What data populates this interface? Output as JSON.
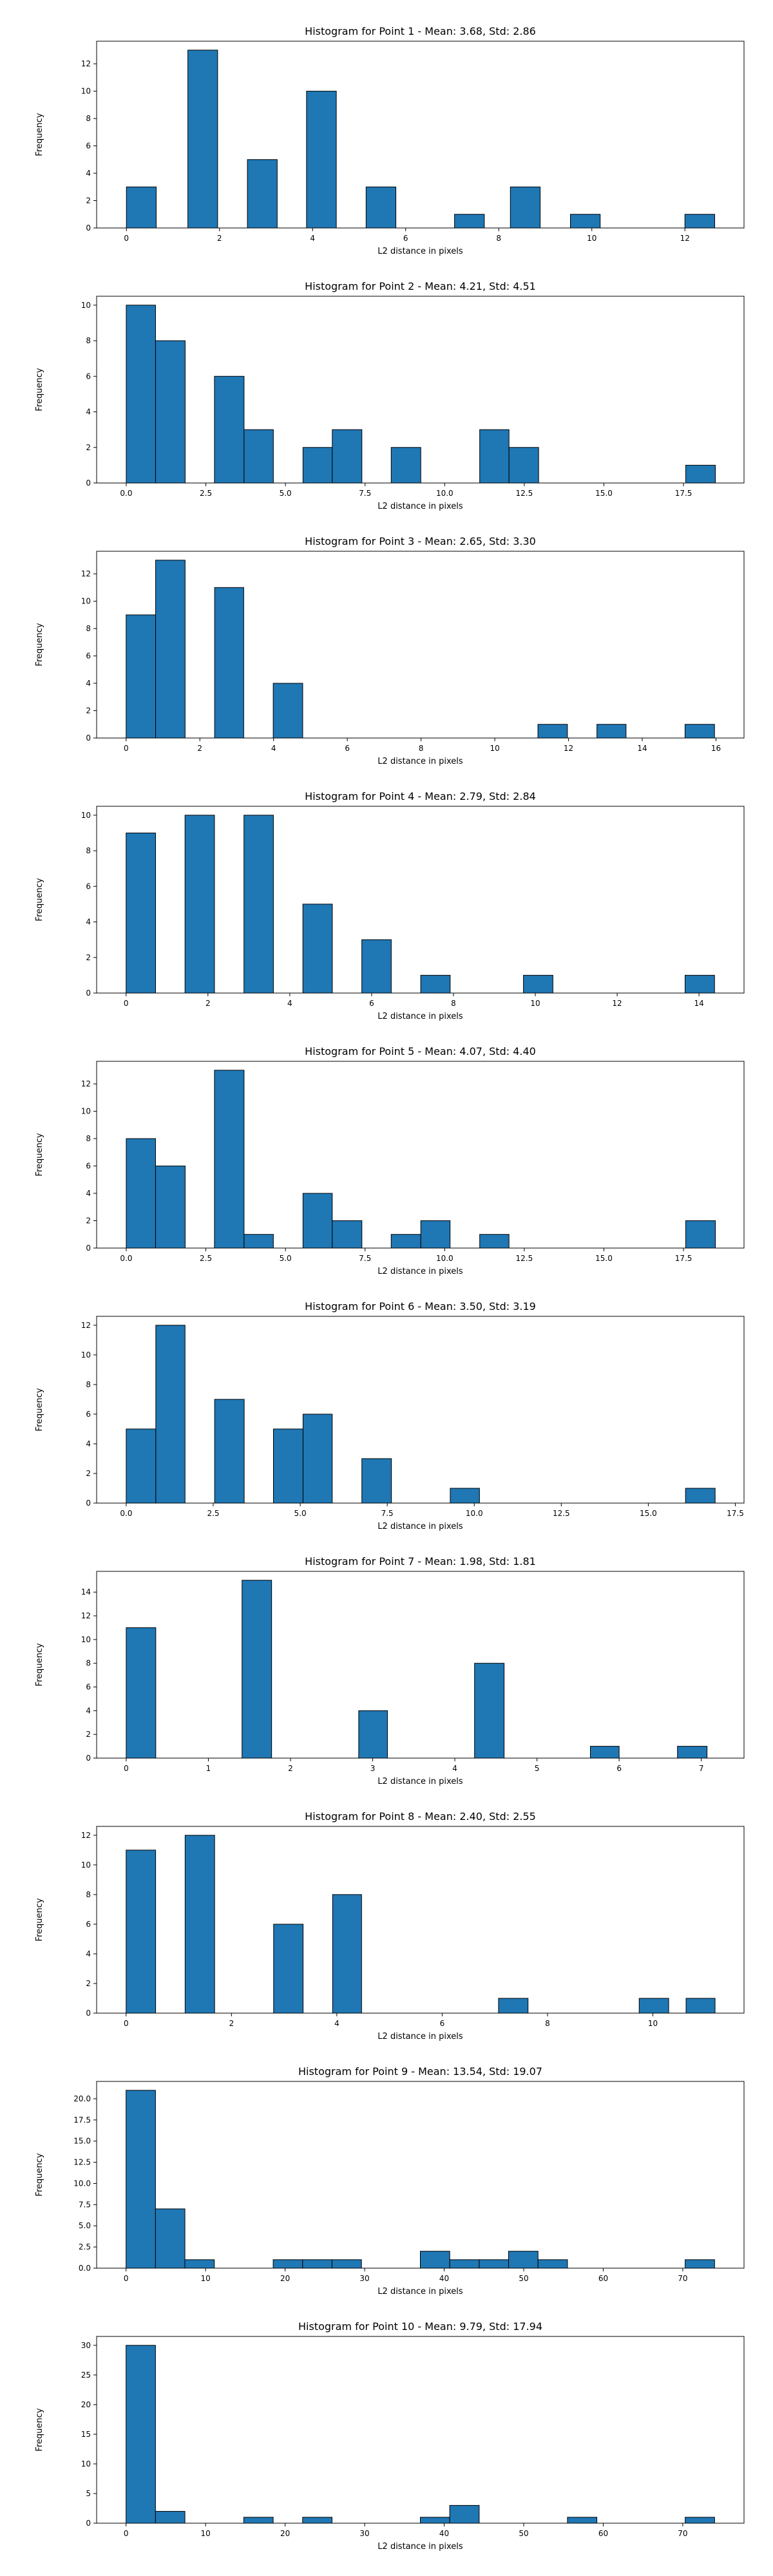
{
  "colors": {
    "bar_fill": "#1f77b4",
    "bar_edge": "#000000",
    "axes": "#000000",
    "background": "#ffffff"
  },
  "chart_data": [
    {
      "type": "bar",
      "title": "Histogram for Point 1 - Mean: 3.68, Std: 2.86",
      "xlabel": "L2 distance in pixels",
      "ylabel": "Frequency",
      "xlim": [
        -0.64,
        13.27
      ],
      "ylim": [
        0,
        13.65
      ],
      "xticks": [
        0,
        2,
        4,
        6,
        8,
        10,
        12
      ],
      "xtick_labels": [
        "0",
        "2",
        "4",
        "6",
        "8",
        "10",
        "12"
      ],
      "yticks": [
        0,
        2,
        4,
        6,
        8,
        10,
        12
      ],
      "ytick_labels": [
        "0",
        "2",
        "4",
        "6",
        "8",
        "10",
        "12"
      ],
      "grid": false,
      "bins": [
        {
          "x0": 0.0,
          "x1": 0.64,
          "count": 3
        },
        {
          "x0": 1.32,
          "x1": 1.96,
          "count": 13
        },
        {
          "x0": 2.6,
          "x1": 3.24,
          "count": 5
        },
        {
          "x0": 3.87,
          "x1": 4.51,
          "count": 10
        },
        {
          "x0": 5.15,
          "x1": 5.79,
          "count": 3
        },
        {
          "x0": 7.05,
          "x1": 7.69,
          "count": 1
        },
        {
          "x0": 8.25,
          "x1": 8.89,
          "count": 3
        },
        {
          "x0": 9.54,
          "x1": 10.18,
          "count": 1
        },
        {
          "x0": 12.0,
          "x1": 12.64,
          "count": 1
        }
      ]
    },
    {
      "type": "bar",
      "title": "Histogram for Point 2 - Mean: 4.21, Std: 4.51",
      "xlabel": "L2 distance in pixels",
      "ylabel": "Frequency",
      "xlim": [
        -0.93,
        19.4
      ],
      "ylim": [
        0,
        10.5
      ],
      "xticks": [
        0,
        2.5,
        5,
        7.5,
        10,
        12.5,
        15,
        17.5
      ],
      "xtick_labels": [
        "0.0",
        "2.5",
        "5.0",
        "7.5",
        "10.0",
        "12.5",
        "15.0",
        "17.5"
      ],
      "yticks": [
        0,
        2,
        4,
        6,
        8,
        10
      ],
      "ytick_labels": [
        "0",
        "2",
        "4",
        "6",
        "8",
        "10"
      ],
      "grid": false,
      "bins": [
        {
          "x0": 0.0,
          "x1": 0.92,
          "count": 10
        },
        {
          "x0": 0.92,
          "x1": 1.85,
          "count": 8
        },
        {
          "x0": 2.77,
          "x1": 3.7,
          "count": 6
        },
        {
          "x0": 3.7,
          "x1": 4.62,
          "count": 3
        },
        {
          "x0": 5.55,
          "x1": 6.47,
          "count": 2
        },
        {
          "x0": 6.47,
          "x1": 7.4,
          "count": 3
        },
        {
          "x0": 8.32,
          "x1": 9.25,
          "count": 2
        },
        {
          "x0": 11.1,
          "x1": 12.02,
          "count": 3
        },
        {
          "x0": 12.02,
          "x1": 12.95,
          "count": 2
        },
        {
          "x0": 17.57,
          "x1": 18.5,
          "count": 1
        }
      ]
    },
    {
      "type": "bar",
      "title": "Histogram for Point 3 - Mean: 2.65, Std: 3.30",
      "xlabel": "L2 distance in pixels",
      "ylabel": "Frequency",
      "xlim": [
        -0.8,
        16.76
      ],
      "ylim": [
        0,
        13.65
      ],
      "xticks": [
        0,
        2,
        4,
        6,
        8,
        10,
        12,
        14,
        16
      ],
      "xtick_labels": [
        "0",
        "2",
        "4",
        "6",
        "8",
        "10",
        "12",
        "14",
        "16"
      ],
      "yticks": [
        0,
        2,
        4,
        6,
        8,
        10,
        12
      ],
      "ytick_labels": [
        "0",
        "2",
        "4",
        "6",
        "8",
        "10",
        "12"
      ],
      "grid": false,
      "bins": [
        {
          "x0": 0.0,
          "x1": 0.8,
          "count": 9
        },
        {
          "x0": 0.8,
          "x1": 1.6,
          "count": 13
        },
        {
          "x0": 2.4,
          "x1": 3.19,
          "count": 11
        },
        {
          "x0": 3.99,
          "x1": 4.79,
          "count": 4
        },
        {
          "x0": 11.17,
          "x1": 11.97,
          "count": 1
        },
        {
          "x0": 12.77,
          "x1": 13.56,
          "count": 1
        },
        {
          "x0": 15.16,
          "x1": 15.96,
          "count": 1
        }
      ]
    },
    {
      "type": "bar",
      "title": "Histogram for Point 4 - Mean: 2.79, Std: 2.84",
      "xlabel": "L2 distance in pixels",
      "ylabel": "Frequency",
      "xlim": [
        -0.72,
        15.1
      ],
      "ylim": [
        0,
        10.5
      ],
      "xticks": [
        0,
        2,
        4,
        6,
        8,
        10,
        12,
        14
      ],
      "xtick_labels": [
        "0",
        "2",
        "4",
        "6",
        "8",
        "10",
        "12",
        "14"
      ],
      "yticks": [
        0,
        2,
        4,
        6,
        8,
        10
      ],
      "ytick_labels": [
        "0",
        "2",
        "4",
        "6",
        "8",
        "10"
      ],
      "grid": false,
      "bins": [
        {
          "x0": 0.0,
          "x1": 0.72,
          "count": 9
        },
        {
          "x0": 1.44,
          "x1": 2.16,
          "count": 10
        },
        {
          "x0": 2.88,
          "x1": 3.6,
          "count": 10
        },
        {
          "x0": 4.32,
          "x1": 5.04,
          "count": 5
        },
        {
          "x0": 5.76,
          "x1": 6.48,
          "count": 3
        },
        {
          "x0": 7.2,
          "x1": 7.92,
          "count": 1
        },
        {
          "x0": 9.71,
          "x1": 10.43,
          "count": 1
        },
        {
          "x0": 13.66,
          "x1": 14.38,
          "count": 1
        }
      ]
    },
    {
      "type": "bar",
      "title": "Histogram for Point 5 - Mean: 4.07, Std: 4.40",
      "xlabel": "L2 distance in pixels",
      "ylabel": "Frequency",
      "xlim": [
        -0.93,
        19.4
      ],
      "ylim": [
        0,
        13.65
      ],
      "xticks": [
        0,
        2.5,
        5,
        7.5,
        10,
        12.5,
        15,
        17.5
      ],
      "xtick_labels": [
        "0.0",
        "2.5",
        "5.0",
        "7.5",
        "10.0",
        "12.5",
        "15.0",
        "17.5"
      ],
      "yticks": [
        0,
        2,
        4,
        6,
        8,
        10,
        12
      ],
      "ytick_labels": [
        "0",
        "2",
        "4",
        "6",
        "8",
        "10",
        "12"
      ],
      "grid": false,
      "bins": [
        {
          "x0": 0.0,
          "x1": 0.92,
          "count": 8
        },
        {
          "x0": 0.92,
          "x1": 1.85,
          "count": 6
        },
        {
          "x0": 2.77,
          "x1": 3.7,
          "count": 13
        },
        {
          "x0": 3.7,
          "x1": 4.62,
          "count": 1
        },
        {
          "x0": 5.55,
          "x1": 6.47,
          "count": 4
        },
        {
          "x0": 6.47,
          "x1": 7.4,
          "count": 2
        },
        {
          "x0": 8.32,
          "x1": 9.25,
          "count": 1
        },
        {
          "x0": 9.25,
          "x1": 10.17,
          "count": 2
        },
        {
          "x0": 11.1,
          "x1": 12.02,
          "count": 1
        },
        {
          "x0": 17.57,
          "x1": 18.5,
          "count": 2
        }
      ]
    },
    {
      "type": "bar",
      "title": "Histogram for Point 6 - Mean: 3.50, Std: 3.19",
      "xlabel": "L2 distance in pixels",
      "ylabel": "Frequency",
      "xlim": [
        -0.85,
        17.75
      ],
      "ylim": [
        0,
        12.6
      ],
      "xticks": [
        0,
        2.5,
        5,
        7.5,
        10,
        12.5,
        15,
        17.5
      ],
      "xtick_labels": [
        "0.0",
        "2.5",
        "5.0",
        "7.5",
        "10.0",
        "12.5",
        "15.0",
        "17.5"
      ],
      "yticks": [
        0,
        2,
        4,
        6,
        8,
        10,
        12
      ],
      "ytick_labels": [
        "0",
        "2",
        "4",
        "6",
        "8",
        "10",
        "12"
      ],
      "grid": false,
      "bins": [
        {
          "x0": 0.0,
          "x1": 0.85,
          "count": 5
        },
        {
          "x0": 0.85,
          "x1": 1.69,
          "count": 12
        },
        {
          "x0": 2.54,
          "x1": 3.39,
          "count": 7
        },
        {
          "x0": 4.23,
          "x1": 5.08,
          "count": 5
        },
        {
          "x0": 5.08,
          "x1": 5.92,
          "count": 6
        },
        {
          "x0": 6.77,
          "x1": 7.62,
          "count": 3
        },
        {
          "x0": 9.31,
          "x1": 10.15,
          "count": 1
        },
        {
          "x0": 16.07,
          "x1": 16.92,
          "count": 1
        }
      ]
    },
    {
      "type": "bar",
      "title": "Histogram for Point 7 - Mean: 1.98, Std: 1.81",
      "xlabel": "L2 distance in pixels",
      "ylabel": "Frequency",
      "xlim": [
        -0.36,
        7.52
      ],
      "ylim": [
        0,
        15.75
      ],
      "xticks": [
        0,
        1,
        2,
        3,
        4,
        5,
        6,
        7
      ],
      "xtick_labels": [
        "0",
        "1",
        "2",
        "3",
        "4",
        "5",
        "6",
        "7"
      ],
      "yticks": [
        0,
        2,
        4,
        6,
        8,
        10,
        12,
        14
      ],
      "ytick_labels": [
        "0",
        "2",
        "4",
        "6",
        "8",
        "10",
        "12",
        "14"
      ],
      "grid": false,
      "bins": [
        {
          "x0": 0.0,
          "x1": 0.36,
          "count": 11
        },
        {
          "x0": 1.41,
          "x1": 1.77,
          "count": 15
        },
        {
          "x0": 2.83,
          "x1": 3.18,
          "count": 4
        },
        {
          "x0": 4.24,
          "x1": 4.6,
          "count": 8
        },
        {
          "x0": 5.65,
          "x1": 6.0,
          "count": 1
        },
        {
          "x0": 6.71,
          "x1": 7.07,
          "count": 1
        }
      ]
    },
    {
      "type": "bar",
      "title": "Histogram for Point 8 - Mean: 2.40, Std: 2.55",
      "xlabel": "L2 distance in pixels",
      "ylabel": "Frequency",
      "xlim": [
        -0.56,
        11.73
      ],
      "ylim": [
        0,
        12.6
      ],
      "xticks": [
        0,
        2,
        4,
        6,
        8,
        10
      ],
      "xtick_labels": [
        "0",
        "2",
        "4",
        "6",
        "8",
        "10"
      ],
      "yticks": [
        0,
        2,
        4,
        6,
        8,
        10,
        12
      ],
      "ytick_labels": [
        "0",
        "2",
        "4",
        "6",
        "8",
        "10",
        "12"
      ],
      "grid": false,
      "bins": [
        {
          "x0": 0.0,
          "x1": 0.56,
          "count": 11
        },
        {
          "x0": 1.12,
          "x1": 1.68,
          "count": 12
        },
        {
          "x0": 2.8,
          "x1": 3.36,
          "count": 6
        },
        {
          "x0": 3.92,
          "x1": 4.47,
          "count": 8
        },
        {
          "x0": 7.07,
          "x1": 7.63,
          "count": 1
        },
        {
          "x0": 9.74,
          "x1": 10.3,
          "count": 1
        },
        {
          "x0": 10.63,
          "x1": 11.18,
          "count": 1
        }
      ]
    },
    {
      "type": "bar",
      "title": "Histogram for Point 9 - Mean: 13.54, Std: 19.07",
      "xlabel": "L2 distance in pixels",
      "ylabel": "Frequency",
      "xlim": [
        -3.7,
        77.7
      ],
      "ylim": [
        0,
        22.05
      ],
      "xticks": [
        0,
        10,
        20,
        30,
        40,
        50,
        60,
        70
      ],
      "xtick_labels": [
        "0",
        "10",
        "20",
        "30",
        "40",
        "50",
        "60",
        "70"
      ],
      "yticks": [
        0,
        2.5,
        5,
        7.5,
        10,
        12.5,
        15,
        17.5,
        20
      ],
      "ytick_labels": [
        "0.0",
        "2.5",
        "5.0",
        "7.5",
        "10.0",
        "12.5",
        "15.0",
        "17.5",
        "20.0"
      ],
      "grid": false,
      "bins": [
        {
          "x0": 0.0,
          "x1": 3.7,
          "count": 21
        },
        {
          "x0": 3.7,
          "x1": 7.4,
          "count": 7
        },
        {
          "x0": 7.4,
          "x1": 11.1,
          "count": 1
        },
        {
          "x0": 18.5,
          "x1": 22.2,
          "count": 1
        },
        {
          "x0": 22.2,
          "x1": 25.9,
          "count": 1
        },
        {
          "x0": 25.9,
          "x1": 29.6,
          "count": 1
        },
        {
          "x0": 37.0,
          "x1": 40.7,
          "count": 2
        },
        {
          "x0": 40.7,
          "x1": 44.4,
          "count": 1
        },
        {
          "x0": 44.4,
          "x1": 48.1,
          "count": 1
        },
        {
          "x0": 48.1,
          "x1": 51.8,
          "count": 2
        },
        {
          "x0": 51.8,
          "x1": 55.5,
          "count": 1
        },
        {
          "x0": 70.3,
          "x1": 74.0,
          "count": 1
        }
      ]
    },
    {
      "type": "bar",
      "title": "Histogram for Point 10 - Mean: 9.79, Std: 17.94",
      "xlabel": "L2 distance in pixels",
      "ylabel": "Frequency",
      "xlim": [
        -3.7,
        77.7
      ],
      "ylim": [
        0,
        31.5
      ],
      "xticks": [
        0,
        10,
        20,
        30,
        40,
        50,
        60,
        70
      ],
      "xtick_labels": [
        "0",
        "10",
        "20",
        "30",
        "40",
        "50",
        "60",
        "70"
      ],
      "yticks": [
        0,
        5,
        10,
        15,
        20,
        25,
        30
      ],
      "ytick_labels": [
        "0",
        "5",
        "10",
        "15",
        "20",
        "25",
        "30"
      ],
      "grid": false,
      "bins": [
        {
          "x0": 0.0,
          "x1": 3.7,
          "count": 30
        },
        {
          "x0": 3.7,
          "x1": 7.4,
          "count": 2
        },
        {
          "x0": 14.8,
          "x1": 18.5,
          "count": 1
        },
        {
          "x0": 22.2,
          "x1": 25.9,
          "count": 1
        },
        {
          "x0": 37.0,
          "x1": 40.7,
          "count": 1
        },
        {
          "x0": 40.7,
          "x1": 44.4,
          "count": 3
        },
        {
          "x0": 55.5,
          "x1": 59.2,
          "count": 1
        },
        {
          "x0": 70.3,
          "x1": 74.0,
          "count": 1
        }
      ]
    }
  ]
}
